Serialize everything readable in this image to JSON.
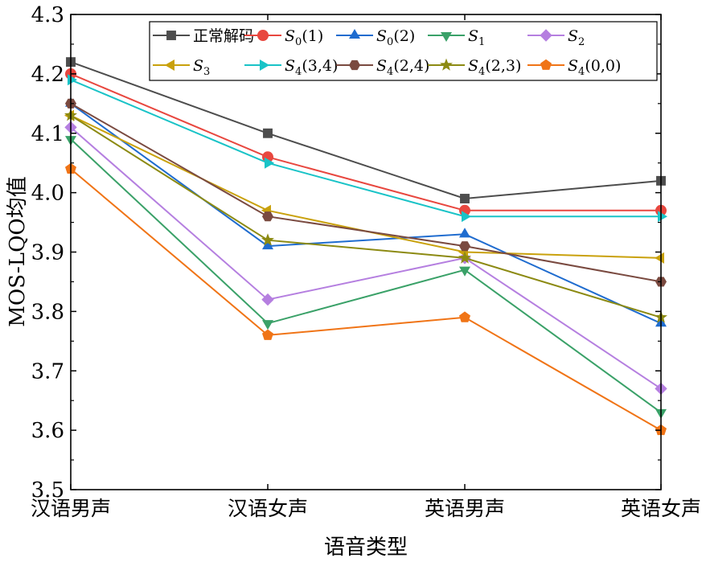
{
  "chart_data": {
    "type": "line",
    "xlabel": "语音类型",
    "ylabel": "MOS-LQO均值",
    "categories": [
      "汉语男声",
      "汉语女声",
      "英语男声",
      "英语女声"
    ],
    "ylim": [
      3.5,
      4.3
    ],
    "yticks": [
      "3.5",
      "3.6",
      "3.7",
      "3.8",
      "3.9",
      "4.0",
      "4.1",
      "4.2",
      "4.3"
    ],
    "legend_position": "top-right, inside",
    "series": [
      {
        "name": "正常解码",
        "label_base": "正常解码",
        "label_sub": "",
        "label_rest": "",
        "color": "#4d4d4d",
        "marker": "square",
        "values": [
          4.22,
          4.1,
          3.99,
          4.02
        ]
      },
      {
        "name": "S0(1)",
        "label_base": "S",
        "label_sub": "0",
        "label_rest": "(1)",
        "color": "#e8473f",
        "marker": "circle",
        "values": [
          4.2,
          4.06,
          3.97,
          3.97
        ]
      },
      {
        "name": "S0(2)",
        "label_base": "S",
        "label_sub": "0",
        "label_rest": "(2)",
        "color": "#1f6ccf",
        "marker": "triangle-up",
        "values": [
          4.15,
          3.91,
          3.93,
          3.78
        ]
      },
      {
        "name": "S1",
        "label_base": "S",
        "label_sub": "1",
        "label_rest": "",
        "color": "#3aa168",
        "marker": "triangle-down",
        "values": [
          4.09,
          3.78,
          3.87,
          3.63
        ]
      },
      {
        "name": "S2",
        "label_base": "S",
        "label_sub": "2",
        "label_rest": "",
        "color": "#b57fe0",
        "marker": "diamond",
        "values": [
          4.11,
          3.82,
          3.89,
          3.67
        ]
      },
      {
        "name": "S3",
        "label_base": "S",
        "label_sub": "3",
        "label_rest": "",
        "color": "#c9a10c",
        "marker": "triangle-left",
        "values": [
          4.13,
          3.97,
          3.9,
          3.89
        ]
      },
      {
        "name": "S4(3,4)",
        "label_base": "S",
        "label_sub": "4",
        "label_rest": "(3,4)",
        "color": "#19c3c7",
        "marker": "triangle-right",
        "values": [
          4.19,
          4.05,
          3.96,
          3.96
        ]
      },
      {
        "name": "S4(2,4)",
        "label_base": "S",
        "label_sub": "4",
        "label_rest": "(2,4)",
        "color": "#7a4a40",
        "marker": "hexagon",
        "values": [
          4.15,
          3.96,
          3.91,
          3.85
        ]
      },
      {
        "name": "S4(2,3)",
        "label_base": "S",
        "label_sub": "4",
        "label_rest": "(2,3)",
        "color": "#8c8a12",
        "marker": "star",
        "values": [
          4.13,
          3.92,
          3.89,
          3.79
        ]
      },
      {
        "name": "S4(0,0)",
        "label_base": "S",
        "label_sub": "4",
        "label_rest": "(0,0)",
        "color": "#f07416",
        "marker": "pentagon",
        "values": [
          4.04,
          3.76,
          3.79,
          3.6
        ]
      }
    ]
  }
}
